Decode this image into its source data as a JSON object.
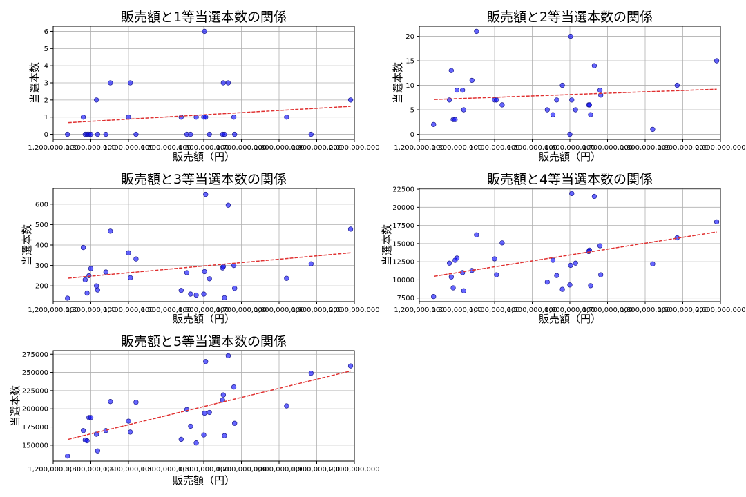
{
  "chart_data": [
    {
      "type": "scatter",
      "title": "販売額と1等当選本数の関係",
      "xlabel": "販売額（円）",
      "ylabel": "当選本数",
      "xlim": [
        1200000000,
        2000000000
      ],
      "ylim": [
        -0.3,
        6.3
      ],
      "xticks": [
        1200000000,
        1300000000,
        1400000000,
        1500000000,
        1600000000,
        1700000000,
        1800000000,
        1900000000,
        2000000000
      ],
      "xtick_labels": [
        "1,200,000,000",
        "1,300,000,000",
        "1,400,000,000",
        "1,500,000,000",
        "1,600,000,000",
        "1,700,000,000",
        "1,800,000,000",
        "1,900,000,000",
        "2,000,000,000"
      ],
      "yticks": [
        0,
        1,
        2,
        3,
        4,
        5,
        6
      ],
      "ytick_labels": [
        "0",
        "1",
        "2",
        "3",
        "4",
        "5",
        "6"
      ],
      "points": [
        [
          1238000000.0,
          0
        ],
        [
          1280000000.0,
          1
        ],
        [
          1285000000.0,
          0
        ],
        [
          1290000000.0,
          0
        ],
        [
          1295000000.0,
          0
        ],
        [
          1300000000.0,
          0
        ],
        [
          1315000000.0,
          2
        ],
        [
          1318000000.0,
          0
        ],
        [
          1340000000.0,
          0
        ],
        [
          1352000000.0,
          3
        ],
        [
          1400000000.0,
          1
        ],
        [
          1405000000.0,
          3
        ],
        [
          1420000000.0,
          0
        ],
        [
          1540000000.0,
          1
        ],
        [
          1555000000.0,
          0
        ],
        [
          1565000000.0,
          0
        ],
        [
          1580000000.0,
          1
        ],
        [
          1600000000.0,
          1
        ],
        [
          1602000000.0,
          6
        ],
        [
          1605000000.0,
          1
        ],
        [
          1615000000.0,
          0
        ],
        [
          1650000000.0,
          0
        ],
        [
          1652000000.0,
          3
        ],
        [
          1655000000.0,
          0
        ],
        [
          1665000000.0,
          3
        ],
        [
          1680000000.0,
          1
        ],
        [
          1682000000.0,
          0
        ],
        [
          1820000000.0,
          1
        ],
        [
          1885000000.0,
          0
        ],
        [
          1990000000.0,
          2
        ]
      ],
      "trend": [
        [
          1240000000.0,
          0.68
        ],
        [
          1990000000.0,
          1.63
        ]
      ]
    },
    {
      "type": "scatter",
      "title": "販売額と2等当選本数の関係",
      "xlabel": "販売額（円）",
      "ylabel": "当選本数",
      "xlim": [
        1200000000,
        2000000000
      ],
      "ylim": [
        -1.05,
        22.05
      ],
      "xticks": [
        1200000000,
        1300000000,
        1400000000,
        1500000000,
        1600000000,
        1700000000,
        1800000000,
        1900000000,
        2000000000
      ],
      "xtick_labels": [
        "1,200,000,000",
        "1,300,000,000",
        "1,400,000,000",
        "1,500,000,000",
        "1,600,000,000",
        "1,700,000,000",
        "1,800,000,000",
        "1,900,000,000",
        "2,000,000,000"
      ],
      "yticks": [
        0,
        5,
        10,
        15,
        20
      ],
      "ytick_labels": [
        "0",
        "5",
        "10",
        "15",
        "20"
      ],
      "points": [
        [
          1238000000.0,
          2
        ],
        [
          1280000000.0,
          7
        ],
        [
          1285000000.0,
          13
        ],
        [
          1290000000.0,
          3
        ],
        [
          1295000000.0,
          3
        ],
        [
          1300000000.0,
          9
        ],
        [
          1315000000.0,
          9
        ],
        [
          1318000000.0,
          5
        ],
        [
          1340000000.0,
          11
        ],
        [
          1352000000.0,
          21
        ],
        [
          1400000000.0,
          7
        ],
        [
          1405000000.0,
          7
        ],
        [
          1420000000.0,
          6
        ],
        [
          1540000000.0,
          5
        ],
        [
          1555000000.0,
          4
        ],
        [
          1565000000.0,
          7
        ],
        [
          1580000000.0,
          10
        ],
        [
          1600000000.0,
          0
        ],
        [
          1602000000.0,
          20
        ],
        [
          1605000000.0,
          7
        ],
        [
          1615000000.0,
          5
        ],
        [
          1650000000.0,
          6
        ],
        [
          1652000000.0,
          6
        ],
        [
          1655000000.0,
          4
        ],
        [
          1665000000.0,
          14
        ],
        [
          1680000000.0,
          9
        ],
        [
          1682000000.0,
          8
        ],
        [
          1820000000.0,
          1
        ],
        [
          1885000000.0,
          10
        ],
        [
          1990000000.0,
          15
        ]
      ],
      "trend": [
        [
          1240000000.0,
          7.1
        ],
        [
          1990000000.0,
          9.2
        ]
      ]
    },
    {
      "type": "scatter",
      "title": "販売額と3等当選本数の関係",
      "xlabel": "販売額（円）",
      "ylabel": "当選本数",
      "xlim": [
        1200000000,
        2000000000
      ],
      "ylim": [
        123,
        677
      ],
      "xticks": [
        1200000000,
        1300000000,
        1400000000,
        1500000000,
        1600000000,
        1700000000,
        1800000000,
        1900000000,
        2000000000
      ],
      "xtick_labels": [
        "1,200,000,000",
        "1,300,000,000",
        "1,400,000,000",
        "1,500,000,000",
        "1,600,000,000",
        "1,700,000,000",
        "1,800,000,000",
        "1,900,000,000",
        "2,000,000,000"
      ],
      "yticks": [
        200,
        300,
        400,
        500,
        600
      ],
      "ytick_labels": [
        "200",
        "300",
        "400",
        "500",
        "600"
      ],
      "points": [
        [
          1238000000.0,
          140
        ],
        [
          1280000000.0,
          388
        ],
        [
          1285000000.0,
          230
        ],
        [
          1290000000.0,
          165
        ],
        [
          1295000000.0,
          250
        ],
        [
          1300000000.0,
          285
        ],
        [
          1315000000.0,
          200
        ],
        [
          1318000000.0,
          180
        ],
        [
          1340000000.0,
          268
        ],
        [
          1352000000.0,
          468
        ],
        [
          1400000000.0,
          362
        ],
        [
          1405000000.0,
          240
        ],
        [
          1420000000.0,
          332
        ],
        [
          1540000000.0,
          178
        ],
        [
          1555000000.0,
          265
        ],
        [
          1565000000.0,
          160
        ],
        [
          1580000000.0,
          155
        ],
        [
          1600000000.0,
          160
        ],
        [
          1602000000.0,
          270
        ],
        [
          1605000000.0,
          648
        ],
        [
          1615000000.0,
          235
        ],
        [
          1650000000.0,
          288
        ],
        [
          1652000000.0,
          295
        ],
        [
          1655000000.0,
          142
        ],
        [
          1665000000.0,
          595
        ],
        [
          1680000000.0,
          300
        ],
        [
          1682000000.0,
          188
        ],
        [
          1820000000.0,
          237
        ],
        [
          1885000000.0,
          308
        ],
        [
          1990000000.0,
          478
        ]
      ],
      "trend": [
        [
          1240000000.0,
          238
        ],
        [
          1990000000.0,
          362
        ]
      ]
    },
    {
      "type": "scatter",
      "title": "販売額と4等当選本数の関係",
      "xlabel": "販売額（円）",
      "ylabel": "当選本数",
      "xlim": [
        1200000000,
        2000000000
      ],
      "ylim": [
        7000,
        22600
      ],
      "xticks": [
        1200000000,
        1300000000,
        1400000000,
        1500000000,
        1600000000,
        1700000000,
        1800000000,
        1900000000,
        2000000000
      ],
      "xtick_labels": [
        "1,200,000,000",
        "1,300,000,000",
        "1,400,000,000",
        "1,500,000,000",
        "1,600,000,000",
        "1,700,000,000",
        "1,800,000,000",
        "1,900,000,000",
        "2,000,000,000"
      ],
      "yticks": [
        7500,
        10000,
        12500,
        15000,
        17500,
        20000,
        22500
      ],
      "ytick_labels": [
        "7500",
        "10000",
        "12500",
        "15000",
        "17500",
        "20000",
        "22500"
      ],
      "points": [
        [
          1238000000.0,
          7700
        ],
        [
          1280000000.0,
          12300
        ],
        [
          1285000000.0,
          10400
        ],
        [
          1290000000.0,
          8900
        ],
        [
          1295000000.0,
          12700
        ],
        [
          1300000000.0,
          13000
        ],
        [
          1315000000.0,
          11000
        ],
        [
          1318000000.0,
          8500
        ],
        [
          1340000000.0,
          11300
        ],
        [
          1352000000.0,
          16200
        ],
        [
          1400000000.0,
          12900
        ],
        [
          1405000000.0,
          10700
        ],
        [
          1420000000.0,
          15100
        ],
        [
          1540000000.0,
          9700
        ],
        [
          1555000000.0,
          12700
        ],
        [
          1565000000.0,
          10600
        ],
        [
          1580000000.0,
          8700
        ],
        [
          1600000000.0,
          9300
        ],
        [
          1602000000.0,
          12000
        ],
        [
          1605000000.0,
          21900
        ],
        [
          1615000000.0,
          12300
        ],
        [
          1650000000.0,
          13900
        ],
        [
          1652000000.0,
          14100
        ],
        [
          1655000000.0,
          9200
        ],
        [
          1665000000.0,
          21500
        ],
        [
          1680000000.0,
          14700
        ],
        [
          1682000000.0,
          10700
        ],
        [
          1820000000.0,
          12200
        ],
        [
          1885000000.0,
          15800
        ],
        [
          1990000000.0,
          18000
        ]
      ],
      "trend": [
        [
          1240000000.0,
          10500
        ],
        [
          1990000000.0,
          16600
        ]
      ]
    },
    {
      "type": "scatter",
      "title": "販売額と5等当選本数の関係",
      "xlabel": "販売額（円）",
      "ylabel": "当選本数",
      "xlim": [
        1200000000,
        2000000000
      ],
      "ylim": [
        128000,
        280000
      ],
      "xticks": [
        1200000000,
        1300000000,
        1400000000,
        1500000000,
        1600000000,
        1700000000,
        1800000000,
        1900000000,
        2000000000
      ],
      "xtick_labels": [
        "1,200,000,000",
        "1,300,000,000",
        "1,400,000,000",
        "1,500,000,000",
        "1,600,000,000",
        "1,700,000,000",
        "1,800,000,000",
        "1,900,000,000",
        "2,000,000,000"
      ],
      "yticks": [
        150000,
        175000,
        200000,
        225000,
        250000,
        275000
      ],
      "ytick_labels": [
        "150000",
        "175000",
        "200000",
        "225000",
        "250000",
        "275000"
      ],
      "points": [
        [
          1238000000.0,
          135000
        ],
        [
          1280000000.0,
          170000
        ],
        [
          1285000000.0,
          157000
        ],
        [
          1290000000.0,
          156000
        ],
        [
          1295000000.0,
          188000
        ],
        [
          1300000000.0,
          188000
        ],
        [
          1315000000.0,
          165000
        ],
        [
          1318000000.0,
          142000
        ],
        [
          1340000000.0,
          170000
        ],
        [
          1352000000.0,
          210000
        ],
        [
          1400000000.0,
          183000
        ],
        [
          1405000000.0,
          168000
        ],
        [
          1420000000.0,
          209000
        ],
        [
          1540000000.0,
          158000
        ],
        [
          1555000000.0,
          199000
        ],
        [
          1565000000.0,
          176000
        ],
        [
          1580000000.0,
          153000
        ],
        [
          1600000000.0,
          164000
        ],
        [
          1602000000.0,
          194000
        ],
        [
          1605000000.0,
          265000
        ],
        [
          1615000000.0,
          195000
        ],
        [
          1650000000.0,
          212000
        ],
        [
          1652000000.0,
          219000
        ],
        [
          1655000000.0,
          163000
        ],
        [
          1665000000.0,
          273000
        ],
        [
          1680000000.0,
          230000
        ],
        [
          1682000000.0,
          180000
        ],
        [
          1820000000.0,
          204000
        ],
        [
          1885000000.0,
          249000
        ],
        [
          1990000000.0,
          259000
        ]
      ],
      "trend": [
        [
          1240000000.0,
          158000
        ],
        [
          1990000000.0,
          252000
        ]
      ]
    }
  ],
  "colors": {
    "point": "#0000ff",
    "point_edge": "#1a1a8c",
    "trend": "#e03030",
    "grid": "#b0b0b0",
    "axis": "#000000"
  }
}
